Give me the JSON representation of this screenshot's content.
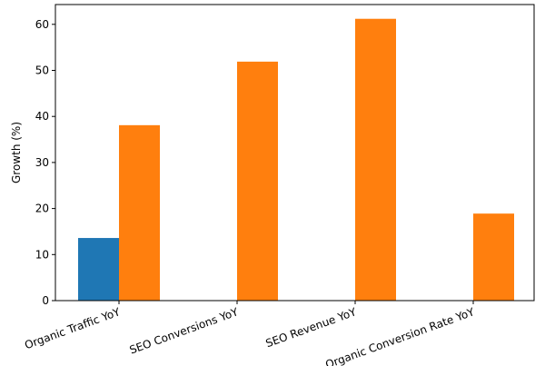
{
  "chart_data": {
    "type": "bar",
    "y_label": "Growth (%)",
    "categories": [
      "Organic Traffic YoY",
      "SEO Conversions YoY",
      "SEO Revenue YoY",
      "Organic Conversion Rate YoY"
    ],
    "series": [
      {
        "color": "#1f77b4",
        "values": [
          13.6,
          null,
          null,
          null
        ]
      },
      {
        "color": "#ff7f0e",
        "values": [
          38.1,
          51.9,
          61.2,
          18.9
        ]
      }
    ],
    "ylim": [
      0,
      64.3
    ],
    "yticks": [
      0,
      10,
      20,
      30,
      40,
      50,
      60
    ],
    "grid": false
  }
}
